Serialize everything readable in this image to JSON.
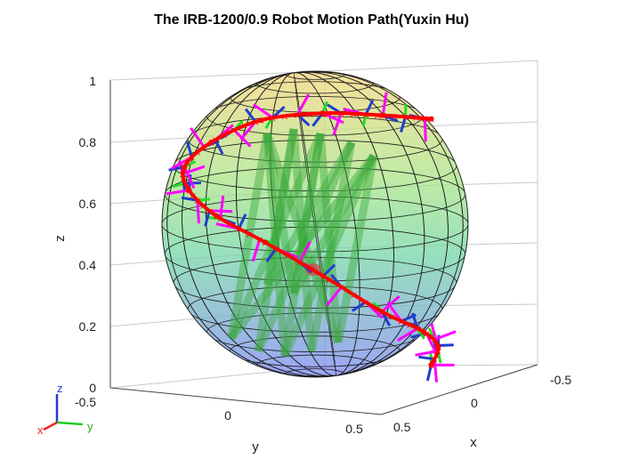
{
  "figure": {
    "title": "The IRB-1200/0.9 Robot Motion Path(Yuxin Hu)"
  },
  "axes": {
    "xlabel": "x",
    "ylabel": "y",
    "zlabel": "z",
    "z_ticks": [
      "0",
      "0.2",
      "0.4",
      "0.6",
      "0.8",
      "1"
    ],
    "y_ticks": [
      "-0.5",
      "0",
      "0.5"
    ],
    "x_ticks": [
      "-0.5",
      "0",
      "0.5"
    ]
  },
  "triad": {
    "x": "x",
    "y": "y",
    "z": "z"
  },
  "colors": {
    "path": "#ff0000",
    "frame_a": "#ff00ff",
    "frame_b": "#1f3fcf",
    "frame_c": "#22dd22",
    "sphere_top": "#f2d27a",
    "sphere_mid": "#8fe08f",
    "sphere_bottom": "#7e8cf0"
  },
  "chart_data": {
    "type": "scatter",
    "title": "The IRB-1200/0.9 Robot Motion Path(Yuxin Hu)",
    "xlabel": "x",
    "ylabel": "y",
    "zlabel": "z",
    "xlim": [
      -0.5,
      0.5
    ],
    "ylim": [
      -0.5,
      0.5
    ],
    "zlim": [
      0,
      1
    ],
    "grid": true,
    "series": [
      {
        "name": "",
        "description": "",
        "x": [
          0.0,
          0.15,
          0.32,
          0.42,
          0.4,
          0.28,
          0.1,
          -0.1,
          -0.28,
          -0.4,
          -0.42,
          -0.32,
          -0.15,
          0.0
        ],
        "y": [
          0.45,
          0.42,
          0.3,
          0.1,
          -0.12,
          -0.3,
          -0.42,
          -0.45,
          -0.4,
          -0.25,
          -0.05,
          0.15,
          0.32,
          0.45
        ],
        "z": [
          0.1,
          0.18,
          0.25,
          0.32,
          0.42,
          0.5,
          0.55,
          0.6,
          0.65,
          0.72,
          0.8,
          0.85,
          0.88,
          0.9
        ]
      }
    ]
  }
}
